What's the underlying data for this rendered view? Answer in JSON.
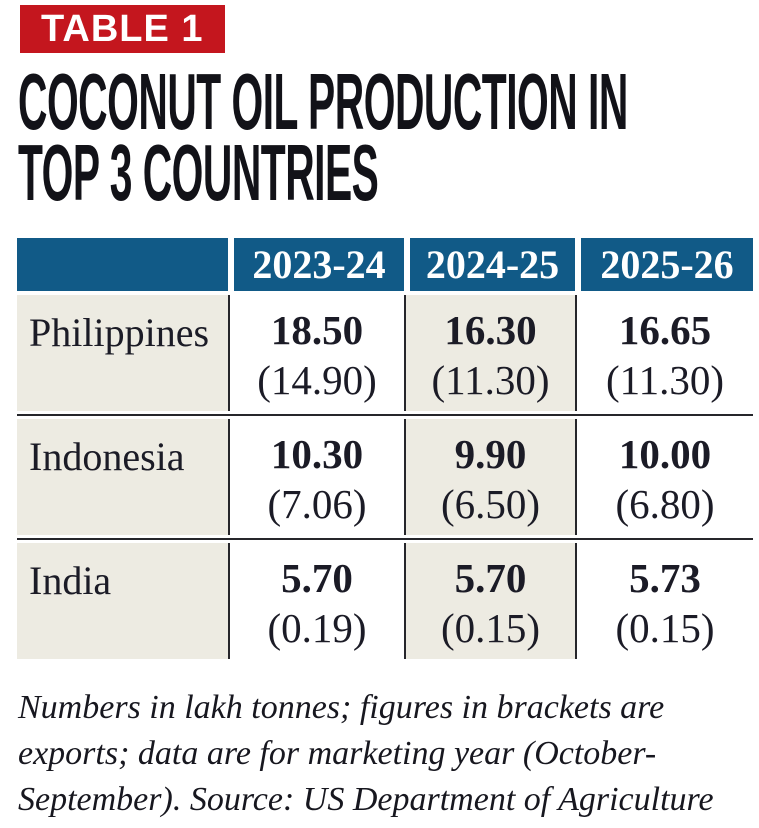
{
  "badge": {
    "label": "TABLE 1"
  },
  "title": {
    "lines": [
      "COCONUT OIL PRODUCTION IN",
      "TOP 3 COUNTRIES"
    ]
  },
  "colors": {
    "badge_red": "#C4161E",
    "header_blue": "#115A87",
    "cell_beige": "#EDEBE2",
    "line_black": "#26262b",
    "text": "#1b1b26"
  },
  "table": {
    "col_headers": [
      "2023-24",
      "2024-25",
      "2025-26"
    ],
    "rows": [
      {
        "name": "Philippines",
        "cells": [
          {
            "production": "18.50",
            "exports": "(14.90)"
          },
          {
            "production": "16.30",
            "exports": "(11.30)"
          },
          {
            "production": "16.65",
            "exports": "(11.30)"
          }
        ]
      },
      {
        "name": "Indonesia",
        "cells": [
          {
            "production": "10.30",
            "exports": "(7.06)"
          },
          {
            "production": "9.90",
            "exports": "(6.50)"
          },
          {
            "production": "10.00",
            "exports": "(6.80)"
          }
        ]
      },
      {
        "name": "India",
        "cells": [
          {
            "production": "5.70",
            "exports": "(0.19)"
          },
          {
            "production": "5.70",
            "exports": "(0.15)"
          },
          {
            "production": "5.73",
            "exports": "(0.15)"
          }
        ]
      }
    ]
  },
  "footnote": {
    "lines": [
      "Numbers in lakh tonnes; figures in brackets are",
      "exports; data are for marketing year (October-",
      "September). Source: US Department of Agriculture"
    ]
  },
  "chart_data": {
    "type": "table",
    "title": "COCONUT OIL PRODUCTION IN TOP 3 COUNTRIES",
    "unit": "lakh tonnes",
    "columns": [
      "Country",
      "2023-24",
      "2024-25",
      "2025-26"
    ],
    "series": [
      {
        "name": "Philippines",
        "production": [
          18.5,
          16.3,
          16.65
        ],
        "exports": [
          14.9,
          11.3,
          11.3
        ]
      },
      {
        "name": "Indonesia",
        "production": [
          10.3,
          9.9,
          10.0
        ],
        "exports": [
          7.06,
          6.5,
          6.8
        ]
      },
      {
        "name": "India",
        "production": [
          5.7,
          5.7,
          5.73
        ],
        "exports": [
          0.19,
          0.15,
          0.15
        ]
      }
    ],
    "note": "Numbers in lakh tonnes; figures in brackets are exports; data are for marketing year (October-September). Source: US Department of Agriculture"
  }
}
